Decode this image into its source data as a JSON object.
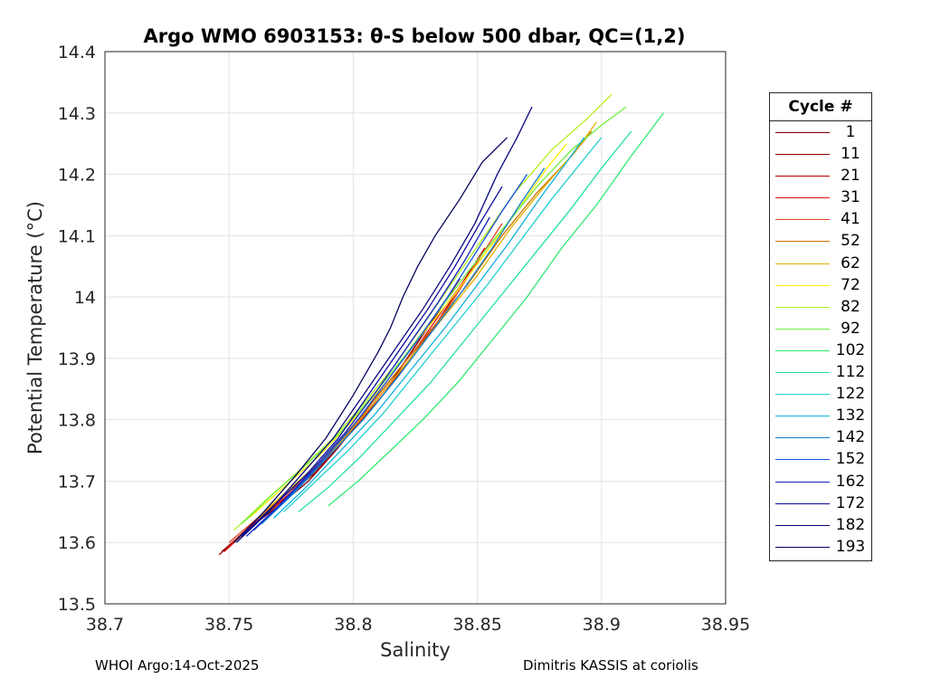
{
  "chart_data": {
    "type": "line",
    "title": "Argo WMO 6903153: θ-S below 500 dbar,  QC=(1,2)",
    "xlabel": "Salinity",
    "ylabel": "Potential Temperature (°C)",
    "xlim": [
      38.7,
      38.95
    ],
    "ylim": [
      13.5,
      14.4
    ],
    "xticks": [
      "38.7",
      "38.75",
      "38.8",
      "38.85",
      "38.9",
      "38.95"
    ],
    "yticks": [
      "13.5",
      "13.6",
      "13.7",
      "13.8",
      "13.9",
      "14",
      "14.1",
      "14.2",
      "14.3",
      "14.4"
    ],
    "grid": true,
    "legend": {
      "title": "Cycle #",
      "placement": "right",
      "entries": [
        {
          "label": "1",
          "color": "#7f0000"
        },
        {
          "label": "11",
          "color": "#9a0000"
        },
        {
          "label": "21",
          "color": "#c00000"
        },
        {
          "label": "31",
          "color": "#e01010"
        },
        {
          "label": "41",
          "color": "#e04020"
        },
        {
          "label": "52",
          "color": "#d07000"
        },
        {
          "label": "62",
          "color": "#e0b000"
        },
        {
          "label": "72",
          "color": "#ffee00"
        },
        {
          "label": "82",
          "color": "#b0f020"
        },
        {
          "label": "92",
          "color": "#70f040"
        },
        {
          "label": "102",
          "color": "#30e870"
        },
        {
          "label": "112",
          "color": "#20e0a0"
        },
        {
          "label": "122",
          "color": "#20d0d0"
        },
        {
          "label": "132",
          "color": "#10b0e0"
        },
        {
          "label": "142",
          "color": "#1080d0"
        },
        {
          "label": "152",
          "color": "#1050e0"
        },
        {
          "label": "162",
          "color": "#1020c0"
        },
        {
          "label": "172",
          "color": "#0a0aa0"
        },
        {
          "label": "182",
          "color": "#080880"
        },
        {
          "label": "193",
          "color": "#050560"
        }
      ]
    },
    "series": [
      {
        "name": "1",
        "color": "#7f0000",
        "points": [
          [
            38.747,
            13.585
          ],
          [
            38.757,
            13.62
          ],
          [
            38.77,
            13.66
          ],
          [
            38.782,
            13.7
          ],
          [
            38.793,
            13.75
          ],
          [
            38.803,
            13.8
          ],
          [
            38.815,
            13.86
          ],
          [
            38.825,
            13.92
          ],
          [
            38.835,
            13.98
          ],
          [
            38.843,
            14.03
          ]
        ]
      },
      {
        "name": "11",
        "color": "#9a0000",
        "points": [
          [
            38.746,
            13.58
          ],
          [
            38.758,
            13.625
          ],
          [
            38.772,
            13.67
          ],
          [
            38.785,
            13.715
          ],
          [
            38.797,
            13.77
          ],
          [
            38.808,
            13.83
          ],
          [
            38.82,
            13.89
          ],
          [
            38.83,
            13.95
          ],
          [
            38.84,
            14.01
          ]
        ]
      },
      {
        "name": "21",
        "color": "#c00000",
        "points": [
          [
            38.748,
            13.585
          ],
          [
            38.76,
            13.63
          ],
          [
            38.775,
            13.68
          ],
          [
            38.788,
            13.73
          ],
          [
            38.8,
            13.785
          ],
          [
            38.812,
            13.84
          ],
          [
            38.823,
            13.9
          ],
          [
            38.834,
            13.96
          ],
          [
            38.845,
            14.03
          ],
          [
            38.853,
            14.08
          ]
        ]
      },
      {
        "name": "31",
        "color": "#e01010",
        "points": [
          [
            38.749,
            13.59
          ],
          [
            38.761,
            13.635
          ],
          [
            38.776,
            13.685
          ],
          [
            38.79,
            13.74
          ],
          [
            38.802,
            13.8
          ],
          [
            38.814,
            13.86
          ],
          [
            38.826,
            13.92
          ],
          [
            38.838,
            13.99
          ],
          [
            38.849,
            14.05
          ]
        ]
      },
      {
        "name": "41",
        "color": "#e04020",
        "points": [
          [
            38.75,
            13.6
          ],
          [
            38.763,
            13.645
          ],
          [
            38.778,
            13.695
          ],
          [
            38.792,
            13.75
          ],
          [
            38.805,
            13.81
          ],
          [
            38.817,
            13.87
          ],
          [
            38.829,
            13.93
          ],
          [
            38.841,
            14.0
          ],
          [
            38.852,
            14.07
          ],
          [
            38.86,
            14.12
          ]
        ]
      },
      {
        "name": "52",
        "color": "#d07000",
        "points": [
          [
            38.762,
            13.64
          ],
          [
            38.776,
            13.69
          ],
          [
            38.79,
            13.745
          ],
          [
            38.804,
            13.81
          ],
          [
            38.818,
            13.88
          ],
          [
            38.832,
            13.95
          ],
          [
            38.846,
            14.02
          ],
          [
            38.86,
            14.1
          ],
          [
            38.874,
            14.17
          ],
          [
            38.888,
            14.23
          ],
          [
            38.896,
            14.27
          ]
        ]
      },
      {
        "name": "62",
        "color": "#e0b000",
        "points": [
          [
            38.764,
            13.65
          ],
          [
            38.778,
            13.7
          ],
          [
            38.793,
            13.755
          ],
          [
            38.807,
            13.82
          ],
          [
            38.821,
            13.89
          ],
          [
            38.835,
            13.96
          ],
          [
            38.849,
            14.03
          ],
          [
            38.863,
            14.11
          ],
          [
            38.877,
            14.18
          ],
          [
            38.89,
            14.24
          ],
          [
            38.898,
            14.285
          ]
        ]
      },
      {
        "name": "72",
        "color": "#ffee00",
        "points": [
          [
            38.758,
            13.64
          ],
          [
            38.772,
            13.69
          ],
          [
            38.786,
            13.74
          ],
          [
            38.8,
            13.8
          ],
          [
            38.813,
            13.86
          ],
          [
            38.826,
            13.93
          ],
          [
            38.84,
            14.0
          ],
          [
            38.853,
            14.07
          ],
          [
            38.866,
            14.14
          ],
          [
            38.878,
            14.21
          ],
          [
            38.886,
            14.25
          ]
        ]
      },
      {
        "name": "82",
        "color": "#b0f020",
        "points": [
          [
            38.752,
            13.62
          ],
          [
            38.765,
            13.67
          ],
          [
            38.779,
            13.72
          ],
          [
            38.792,
            13.77
          ],
          [
            38.805,
            13.83
          ],
          [
            38.817,
            13.89
          ],
          [
            38.829,
            13.96
          ],
          [
            38.841,
            14.03
          ],
          [
            38.853,
            14.1
          ],
          [
            38.865,
            14.17
          ],
          [
            38.88,
            14.24
          ],
          [
            38.894,
            14.29
          ],
          [
            38.904,
            14.33
          ]
        ]
      },
      {
        "name": "92",
        "color": "#70f040",
        "points": [
          [
            38.755,
            13.63
          ],
          [
            38.768,
            13.68
          ],
          [
            38.782,
            13.73
          ],
          [
            38.795,
            13.78
          ],
          [
            38.808,
            13.84
          ],
          [
            38.82,
            13.9
          ],
          [
            38.833,
            13.97
          ],
          [
            38.846,
            14.04
          ],
          [
            38.86,
            14.11
          ],
          [
            38.874,
            14.18
          ],
          [
            38.888,
            14.24
          ],
          [
            38.9,
            14.28
          ],
          [
            38.91,
            14.31
          ]
        ]
      },
      {
        "name": "102",
        "color": "#30e870",
        "points": [
          [
            38.79,
            13.66
          ],
          [
            38.802,
            13.7
          ],
          [
            38.815,
            13.75
          ],
          [
            38.828,
            13.8
          ],
          [
            38.842,
            13.86
          ],
          [
            38.856,
            13.93
          ],
          [
            38.87,
            14.0
          ],
          [
            38.884,
            14.08
          ],
          [
            38.898,
            14.15
          ],
          [
            38.912,
            14.23
          ],
          [
            38.925,
            14.3
          ]
        ]
      },
      {
        "name": "112",
        "color": "#20e0a0",
        "points": [
          [
            38.778,
            13.65
          ],
          [
            38.79,
            13.69
          ],
          [
            38.803,
            13.74
          ],
          [
            38.817,
            13.8
          ],
          [
            38.831,
            13.86
          ],
          [
            38.845,
            13.93
          ],
          [
            38.859,
            14.0
          ],
          [
            38.873,
            14.07
          ],
          [
            38.887,
            14.14
          ],
          [
            38.9,
            14.21
          ],
          [
            38.912,
            14.27
          ]
        ]
      },
      {
        "name": "122",
        "color": "#20d0d0",
        "points": [
          [
            38.772,
            13.65
          ],
          [
            38.785,
            13.7
          ],
          [
            38.798,
            13.75
          ],
          [
            38.812,
            13.81
          ],
          [
            38.826,
            13.88
          ],
          [
            38.84,
            13.95
          ],
          [
            38.854,
            14.02
          ],
          [
            38.867,
            14.09
          ],
          [
            38.88,
            14.16
          ],
          [
            38.892,
            14.22
          ],
          [
            38.9,
            14.26
          ]
        ]
      },
      {
        "name": "132",
        "color": "#10b0e0",
        "points": [
          [
            38.768,
            13.64
          ],
          [
            38.781,
            13.69
          ],
          [
            38.795,
            13.75
          ],
          [
            38.809,
            13.81
          ],
          [
            38.823,
            13.88
          ],
          [
            38.837,
            13.95
          ],
          [
            38.85,
            14.02
          ],
          [
            38.863,
            14.09
          ],
          [
            38.875,
            14.16
          ],
          [
            38.886,
            14.22
          ],
          [
            38.893,
            14.26
          ]
        ]
      },
      {
        "name": "142",
        "color": "#1080d0",
        "points": [
          [
            38.763,
            13.63
          ],
          [
            38.776,
            13.68
          ],
          [
            38.79,
            13.74
          ],
          [
            38.804,
            13.8
          ],
          [
            38.818,
            13.87
          ],
          [
            38.831,
            13.94
          ],
          [
            38.844,
            14.01
          ],
          [
            38.856,
            14.08
          ],
          [
            38.867,
            14.15
          ],
          [
            38.877,
            14.21
          ]
        ]
      },
      {
        "name": "152",
        "color": "#1050e0",
        "points": [
          [
            38.76,
            13.62
          ],
          [
            38.773,
            13.67
          ],
          [
            38.787,
            13.73
          ],
          [
            38.8,
            13.79
          ],
          [
            38.813,
            13.86
          ],
          [
            38.826,
            13.93
          ],
          [
            38.838,
            14.0
          ],
          [
            38.849,
            14.07
          ],
          [
            38.86,
            14.14
          ],
          [
            38.87,
            14.2
          ]
        ]
      },
      {
        "name": "162",
        "color": "#1020c0",
        "points": [
          [
            38.757,
            13.61
          ],
          [
            38.77,
            13.66
          ],
          [
            38.784,
            13.72
          ],
          [
            38.797,
            13.78
          ],
          [
            38.81,
            13.85
          ],
          [
            38.822,
            13.92
          ],
          [
            38.834,
            13.99
          ],
          [
            38.845,
            14.06
          ],
          [
            38.855,
            14.13
          ]
        ]
      },
      {
        "name": "172",
        "color": "#0a0aa0",
        "points": [
          [
            38.755,
            13.61
          ],
          [
            38.768,
            13.66
          ],
          [
            38.781,
            13.71
          ],
          [
            38.794,
            13.77
          ],
          [
            38.806,
            13.84
          ],
          [
            38.818,
            13.91
          ],
          [
            38.83,
            13.98
          ],
          [
            38.841,
            14.05
          ],
          [
            38.851,
            14.12
          ],
          [
            38.86,
            14.18
          ]
        ]
      },
      {
        "name": "182",
        "color": "#080880",
        "points": [
          [
            38.753,
            13.6
          ],
          [
            38.766,
            13.65
          ],
          [
            38.779,
            13.71
          ],
          [
            38.792,
            13.77
          ],
          [
            38.804,
            13.84
          ],
          [
            38.816,
            13.91
          ],
          [
            38.828,
            13.98
          ],
          [
            38.839,
            14.05
          ],
          [
            38.849,
            14.12
          ],
          [
            38.858,
            14.2
          ],
          [
            38.866,
            14.26
          ],
          [
            38.872,
            14.31
          ]
        ]
      },
      {
        "name": "193",
        "color": "#050560",
        "points": [
          [
            38.752,
            13.6
          ],
          [
            38.764,
            13.65
          ],
          [
            38.777,
            13.71
          ],
          [
            38.789,
            13.77
          ],
          [
            38.8,
            13.84
          ],
          [
            38.81,
            13.91
          ],
          [
            38.815,
            13.95
          ],
          [
            38.82,
            14.0
          ],
          [
            38.826,
            14.05
          ],
          [
            38.833,
            14.1
          ],
          [
            38.843,
            14.16
          ],
          [
            38.852,
            14.22
          ],
          [
            38.862,
            14.26
          ]
        ]
      }
    ]
  },
  "footer": {
    "left": "WHOI Argo:14-Oct-2025",
    "right": "Dimitris KASSIS at coriolis"
  }
}
